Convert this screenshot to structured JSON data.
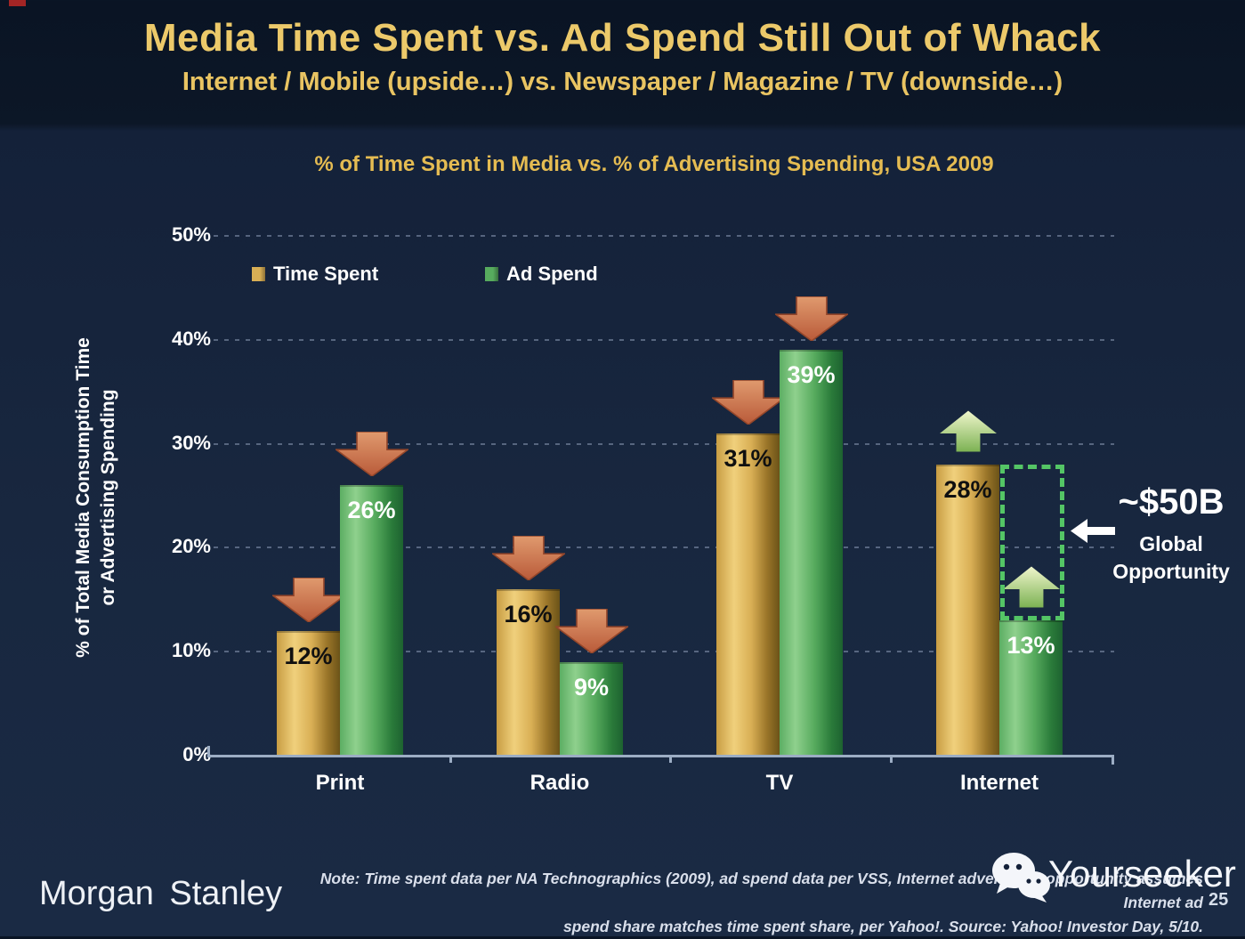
{
  "slide": {
    "title": "Media Time Spent vs. Ad Spend Still Out of Whack",
    "subtitle": "Internet / Mobile (upside…) vs. Newspaper / Magazine / TV (downside…)"
  },
  "chart_data": {
    "type": "bar",
    "title": "% of Time Spent in Media vs. % of Advertising Spending, USA 2009",
    "categories": [
      "Print",
      "Radio",
      "TV",
      "Internet"
    ],
    "series": [
      {
        "name": "Time Spent",
        "values": [
          12,
          16,
          31,
          28
        ],
        "color": "#d9af55",
        "value_label_color": "#101010"
      },
      {
        "name": "Ad Spend",
        "values": [
          26,
          9,
          39,
          13
        ],
        "color": "#57ab5e",
        "value_label_color": "#ffffff"
      }
    ],
    "value_labels": [
      "12%",
      "26%",
      "16%",
      "9%",
      "31%",
      "39%",
      "28%",
      "13%"
    ],
    "ylabel_line1": "% of Total Media Consumption Time",
    "ylabel_line2": "or Advertising Spending",
    "yticks": [
      "50%",
      "40%",
      "30%",
      "20%",
      "10%",
      "0%"
    ],
    "ylim": [
      0,
      50
    ],
    "grid": "dashed-horizontal",
    "legend_position": "top-left",
    "trend_arrows": [
      {
        "category": "Print",
        "time_spent": "down",
        "ad_spend": "down"
      },
      {
        "category": "Radio",
        "time_spent": "down",
        "ad_spend": "down"
      },
      {
        "category": "TV",
        "time_spent": "down",
        "ad_spend": "down"
      },
      {
        "category": "Internet",
        "time_spent": "up",
        "ad_spend": "up"
      }
    ],
    "annotation": {
      "value": "~$50B",
      "label_line1": "Global",
      "label_line2": "Opportunity",
      "gap_category": "Internet",
      "gap_from_pct": 13,
      "gap_to_pct": 28
    }
  },
  "colors": {
    "accent_gold": "#e6c05f",
    "bar_gold": "#d9af55",
    "bar_green": "#57ab5e",
    "arrow_down": "#c9714b",
    "arrow_up": "#a9cd7c",
    "gap_box_green": "#54c565",
    "background_navy": "#142139"
  },
  "footer": {
    "brand": "Morgan Stanley",
    "note_line1": "Note: Time spent data per NA Technographics (2009), ad spend data per VSS, Internet advertising opportunity assumes Internet ad",
    "note_line2": "spend share matches time spent share, per Yahoo!. Source: Yahoo! Investor Day, 5/10.",
    "watermark": "Yourseeker",
    "page_number": "25"
  }
}
